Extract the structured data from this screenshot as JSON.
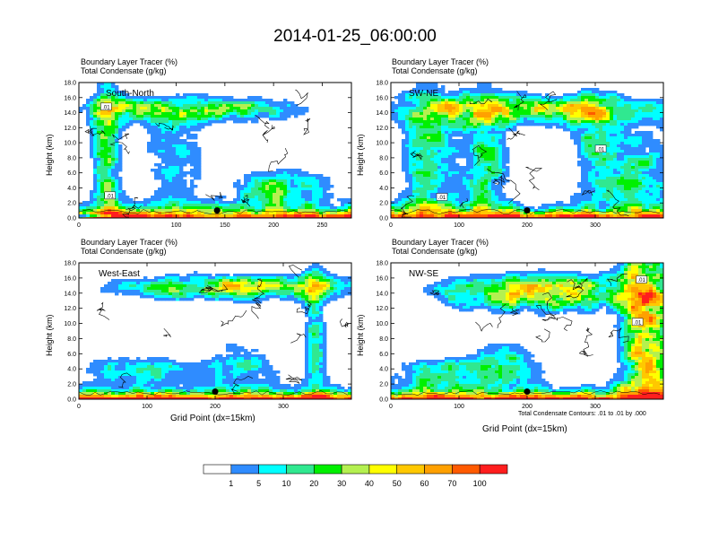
{
  "figure": {
    "title": "2014-01-25_06:00:00",
    "colorbar": {
      "colors": [
        "#ffffff",
        "#2f8cff",
        "#00ffff",
        "#30e890",
        "#00f000",
        "#b4f050",
        "#ffff00",
        "#ffc800",
        "#ffa000",
        "#ff5a00",
        "#ff1e1e"
      ],
      "labels": [
        "1",
        "5",
        "10",
        "20",
        "30",
        "40",
        "50",
        "60",
        "70",
        "100"
      ]
    },
    "contour_note": "Total Condensate Contours: .01 to .01 by .000",
    "xlabel": "Grid Point (dx=15km)"
  },
  "chart_data": [
    {
      "type": "heatmap",
      "panel": "South-North",
      "title_lines": [
        "Boundary Layer Tracer   (%)",
        "Total Condensate   (g/kg)"
      ],
      "ylabel": "Height (km)",
      "xlabel": "",
      "xlim": [
        0,
        280
      ],
      "ylim": [
        0,
        18
      ],
      "xticks": [
        "0",
        "100",
        "150",
        "200",
        "250"
      ],
      "xtick_values": [
        0,
        100,
        150,
        200,
        250
      ],
      "yticks": [
        "0.0",
        "2.0",
        "4.0",
        "6.0",
        "8.0",
        "10.0",
        "12.0",
        "14.0",
        "16.0",
        "18.0"
      ],
      "contour_labels": [
        {
          "text": ".01",
          "x": 28,
          "y": 14.8
        },
        {
          "text": ".01",
          "x": 32,
          "y": 3.0
        }
      ],
      "marker": {
        "x": 142,
        "y": 1.0
      }
    },
    {
      "type": "heatmap",
      "panel": "SW-NE",
      "title_lines": [
        "Boundary Layer Tracer   (%)",
        "Total Condensate   (g/kg)"
      ],
      "ylabel": "Height (km)",
      "xlabel": "",
      "xlim": [
        0,
        400
      ],
      "ylim": [
        0,
        18
      ],
      "xticks": [
        "0",
        "100",
        "200",
        "300"
      ],
      "xtick_values": [
        0,
        100,
        200,
        300
      ],
      "yticks": [
        "0.0",
        "2.0",
        "4.0",
        "6.0",
        "8.0",
        "10.0",
        "12.0",
        "14.0",
        "16.0",
        "18.0"
      ],
      "contour_labels": [
        {
          "text": ".01",
          "x": 75,
          "y": 2.8
        },
        {
          "text": ".01",
          "x": 308,
          "y": 9.2
        }
      ],
      "marker": {
        "x": 200,
        "y": 1.0
      }
    },
    {
      "type": "heatmap",
      "panel": "West-East",
      "title_lines": [
        "Boundary Layer Tracer   (%)",
        "Total Condensate   (g/kg)"
      ],
      "ylabel": "Height (km)",
      "xlabel": "Grid Point (dx=15km)",
      "xlim": [
        0,
        400
      ],
      "ylim": [
        0,
        18
      ],
      "xticks": [
        "0",
        "100",
        "200",
        "300"
      ],
      "xtick_values": [
        0,
        100,
        200,
        300
      ],
      "yticks": [
        "0.0",
        "2.0",
        "4.0",
        "6.0",
        "8.0",
        "10.0",
        "12.0",
        "14.0",
        "16.0",
        "18.0"
      ],
      "contour_labels": [],
      "marker": {
        "x": 200,
        "y": 1.0
      }
    },
    {
      "type": "heatmap",
      "panel": "NW-SE",
      "title_lines": [
        "Boundary Layer Tracer   (%)",
        "Total Condensate   (g/kg)"
      ],
      "ylabel": "Height (km)",
      "xlabel": "Grid Point (dx=15km)",
      "xlim": [
        0,
        400
      ],
      "ylim": [
        0,
        18
      ],
      "xticks": [
        "0",
        "100",
        "200",
        "300"
      ],
      "xtick_values": [
        0,
        100,
        200,
        300
      ],
      "yticks": [
        "0.0",
        "2.0",
        "4.0",
        "6.0",
        "8.0",
        "10.0",
        "12.0",
        "14.0",
        "16.0",
        "18.0"
      ],
      "contour_labels": [
        {
          "text": ".01",
          "x": 368,
          "y": 15.8
        },
        {
          "text": ".01",
          "x": 362,
          "y": 10.2
        }
      ],
      "marker": {
        "x": 200,
        "y": 1.0
      }
    }
  ]
}
